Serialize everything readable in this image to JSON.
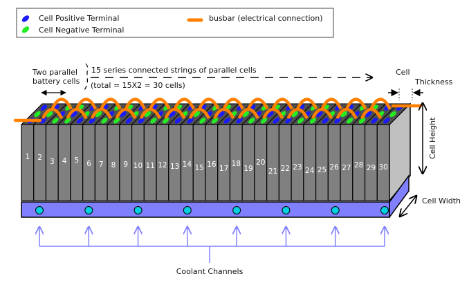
{
  "legend": {
    "positive": "Cell Positive Terminal",
    "negative": "Cell Negative Terminal",
    "busbar": "busbar (electrical connection)"
  },
  "labels": {
    "two_parallel_line1": "Two parallel",
    "two_parallel_line2": "battery cells",
    "series_line1": "15 series connected strings of parallel cells",
    "series_line2": "(total = 15X2 = 30 cells)",
    "cell_thickness_line1": "Cell",
    "cell_thickness_line2": "Thickness",
    "cell_height": "Cell Height",
    "cell_width": "Cell Width",
    "coolant": "Coolant Channels"
  },
  "cells": [
    "1",
    "2",
    "3",
    "4",
    "5",
    "6",
    "7",
    "8",
    "9",
    "10",
    "11",
    "12",
    "13",
    "14",
    "15",
    "16",
    "17",
    "18",
    "19",
    "20",
    "21",
    "22",
    "23",
    "24",
    "25",
    "26",
    "27",
    "28",
    "29",
    "30"
  ],
  "coolant_count": 8,
  "colors": {
    "positive": "#1a1aff",
    "negative": "#22ee22",
    "busbar": "#ff8000",
    "cell": "#808080",
    "cell_top": "#505050",
    "side": "#c0c0c0",
    "base": "#8080ff",
    "coolant_dot": "#00d0e0",
    "coolant_arrow": "#8080ff"
  }
}
